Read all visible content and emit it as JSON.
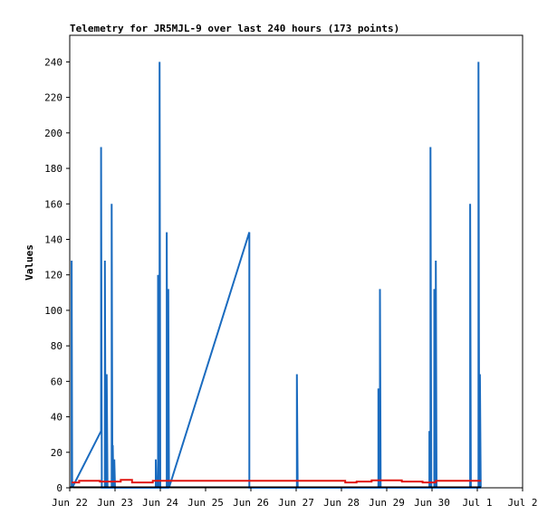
{
  "chart_data": {
    "type": "line",
    "title": "Telemetry for JR5MJL-9 over last 240 hours (173 points)",
    "xlabel": "",
    "ylabel": "Values",
    "ylim": [
      0,
      255
    ],
    "xlim": [
      0,
      240
    ],
    "grid": false,
    "x_ticks": [
      {
        "label": "Jun 22",
        "x": 0
      },
      {
        "label": "Jun 23",
        "x": 24
      },
      {
        "label": "Jun 24",
        "x": 48
      },
      {
        "label": "Jun 25",
        "x": 72
      },
      {
        "label": "Jun 26",
        "x": 96
      },
      {
        "label": "Jun 27",
        "x": 120
      },
      {
        "label": "Jun 28",
        "x": 144
      },
      {
        "label": "Jun 29",
        "x": 168
      },
      {
        "label": "Jun 30",
        "x": 192
      },
      {
        "label": "Jul 1",
        "x": 216
      },
      {
        "label": "Jul 2",
        "x": 240
      }
    ],
    "y_ticks": [
      0,
      20,
      40,
      60,
      80,
      100,
      120,
      140,
      160,
      180,
      200,
      220,
      240
    ],
    "series": [
      {
        "color": "#1a6bbf",
        "points": [
          [
            1.0,
            0
          ],
          [
            1.0,
            128
          ],
          [
            1.3,
            0
          ],
          [
            16.6,
            32
          ],
          [
            16.6,
            192
          ],
          [
            17.0,
            0
          ],
          [
            18.6,
            0
          ],
          [
            18.6,
            128
          ],
          [
            19.0,
            0
          ],
          [
            19.6,
            0
          ],
          [
            19.6,
            64
          ],
          [
            20.0,
            0
          ],
          [
            22.2,
            0
          ],
          [
            22.2,
            160
          ],
          [
            22.6,
            0
          ],
          [
            22.8,
            0
          ],
          [
            22.8,
            24
          ],
          [
            23.2,
            0
          ],
          [
            23.6,
            0
          ],
          [
            23.6,
            16
          ],
          [
            24.0,
            0
          ],
          [
            45.6,
            0
          ],
          [
            45.6,
            16
          ],
          [
            46.0,
            0
          ],
          [
            46.8,
            0
          ],
          [
            46.8,
            120
          ],
          [
            47.2,
            0
          ],
          [
            47.6,
            0
          ],
          [
            47.6,
            240
          ],
          [
            48.0,
            0
          ],
          [
            51.4,
            0
          ],
          [
            51.4,
            144
          ],
          [
            51.8,
            0
          ],
          [
            52.2,
            0
          ],
          [
            52.2,
            112
          ],
          [
            52.6,
            0
          ],
          [
            95.2,
            144
          ],
          [
            95.2,
            0
          ],
          [
            120.4,
            0
          ],
          [
            120.4,
            64
          ],
          [
            120.8,
            0
          ],
          [
            163.6,
            0
          ],
          [
            163.6,
            56
          ],
          [
            164.0,
            0
          ],
          [
            164.4,
            0
          ],
          [
            164.4,
            112
          ],
          [
            164.8,
            0
          ],
          [
            190.6,
            0
          ],
          [
            190.6,
            32
          ],
          [
            191.0,
            0
          ],
          [
            191.2,
            0
          ],
          [
            191.2,
            192
          ],
          [
            191.6,
            0
          ],
          [
            193.2,
            0
          ],
          [
            193.2,
            112
          ],
          [
            193.6,
            0
          ],
          [
            194.0,
            0
          ],
          [
            194.0,
            128
          ],
          [
            194.4,
            0
          ],
          [
            212.2,
            0
          ],
          [
            212.2,
            160
          ],
          [
            212.6,
            0
          ],
          [
            216.6,
            0
          ],
          [
            216.6,
            240
          ],
          [
            217.0,
            0
          ],
          [
            217.4,
            0
          ],
          [
            217.4,
            64
          ],
          [
            217.8,
            0
          ]
        ]
      },
      {
        "color": "#e0140e",
        "points": [
          [
            1,
            3
          ],
          [
            5,
            3
          ],
          [
            5,
            4
          ],
          [
            16,
            4
          ],
          [
            16,
            3.5
          ],
          [
            27,
            3.5
          ],
          [
            27,
            4.5
          ],
          [
            33,
            4.5
          ],
          [
            33,
            3
          ],
          [
            44,
            3
          ],
          [
            44,
            4
          ],
          [
            60,
            4
          ],
          [
            60,
            4
          ],
          [
            132,
            4
          ],
          [
            132,
            4
          ],
          [
            146,
            4
          ],
          [
            146,
            3
          ],
          [
            152,
            3
          ],
          [
            152,
            3.5
          ],
          [
            160,
            3.5
          ],
          [
            160,
            4.2
          ],
          [
            176,
            4.2
          ],
          [
            176,
            3.5
          ],
          [
            187,
            3.5
          ],
          [
            187,
            3
          ],
          [
            194,
            3
          ],
          [
            194,
            4
          ],
          [
            218,
            4
          ]
        ]
      },
      {
        "color": "#000000",
        "points": [
          [
            0,
            0.4
          ],
          [
            218,
            0.4
          ]
        ]
      }
    ]
  }
}
